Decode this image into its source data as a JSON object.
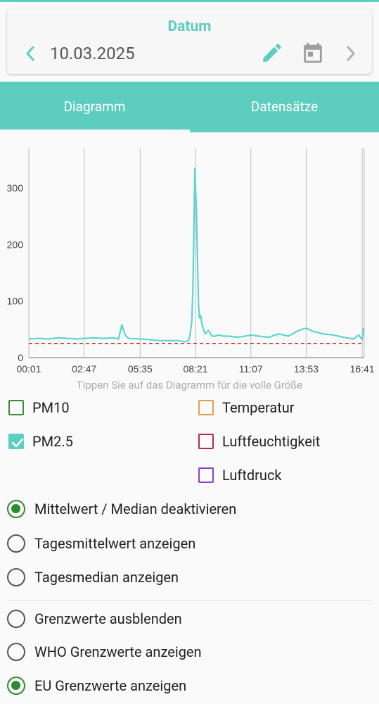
{
  "header": {
    "label": "Datum",
    "date": "10.03.2025",
    "prev_icon": "chevron-left-icon",
    "edit_icon": "pencil-icon",
    "calendar_icon": "calendar-icon",
    "next_icon": "chevron-right-icon"
  },
  "tabs": [
    {
      "label": "Diagramm",
      "active": true
    },
    {
      "label": "Datensätze",
      "active": false
    }
  ],
  "chart_hint": "Tippen Sie auf das Diagramm für die volle Größe",
  "chart_data": {
    "type": "line",
    "title": "",
    "xlabel": "",
    "ylabel": "",
    "x_ticks": [
      "00:01",
      "02:47",
      "05:35",
      "08:21",
      "11:07",
      "13:53",
      "16:41"
    ],
    "y_ticks": [
      0,
      100,
      200,
      300
    ],
    "ylim": [
      0,
      360
    ],
    "grid": "vertical",
    "series": [
      {
        "color": "#5cd6cc",
        "x": [
          "00:01",
          "00:30",
          "01:00",
          "01:30",
          "02:00",
          "02:30",
          "02:47",
          "03:15",
          "03:45",
          "04:15",
          "04:30",
          "04:40",
          "04:50",
          "05:00",
          "05:35",
          "06:00",
          "06:30",
          "07:00",
          "07:30",
          "07:50",
          "08:00",
          "08:05",
          "08:10",
          "08:13",
          "08:16",
          "08:19",
          "08:21",
          "08:24",
          "08:27",
          "08:30",
          "08:33",
          "08:36",
          "08:40",
          "08:45",
          "08:50",
          "09:00",
          "09:10",
          "09:20",
          "09:30",
          "09:45",
          "10:00",
          "10:30",
          "11:07",
          "11:30",
          "12:00",
          "12:30",
          "13:00",
          "13:30",
          "13:53",
          "14:15",
          "14:45",
          "15:15",
          "15:45",
          "16:15",
          "16:30",
          "16:41",
          "16:45"
        ],
        "y": [
          33,
          34,
          33,
          35,
          34,
          33,
          34,
          35,
          34,
          35,
          33,
          58,
          40,
          34,
          33,
          32,
          30,
          30,
          30,
          28,
          30,
          42,
          65,
          120,
          220,
          335,
          300,
          255,
          170,
          95,
          70,
          75,
          60,
          50,
          42,
          48,
          38,
          38,
          40,
          38,
          38,
          36,
          40,
          38,
          36,
          42,
          38,
          48,
          52,
          46,
          42,
          40,
          36,
          33,
          40,
          32,
          52
        ]
      },
      {
        "color": "#b22222",
        "style": "dashed",
        "x": [
          "00:01",
          "16:45"
        ],
        "y": [
          25,
          25
        ]
      }
    ]
  },
  "sensors": [
    {
      "label": "PM10",
      "checked": false,
      "color": "#3c8a3c"
    },
    {
      "label": "PM2.5",
      "checked": true,
      "color": "#5ccdbe"
    },
    {
      "label": "Temperatur",
      "checked": false,
      "color": "#e0a04a"
    },
    {
      "label": "Luftfeuchtigkeit",
      "checked": false,
      "color": "#b03040"
    },
    {
      "label": "Luftdruck",
      "checked": false,
      "color": "#8a3fd0"
    }
  ],
  "average_options": [
    {
      "label": "Mittelwert / Median deaktivieren",
      "selected": true
    },
    {
      "label": "Tagesmittelwert anzeigen",
      "selected": false
    },
    {
      "label": "Tagesmedian anzeigen",
      "selected": false
    }
  ],
  "limit_options": [
    {
      "label": "Grenzwerte ausblenden",
      "selected": false
    },
    {
      "label": "WHO Grenzwerte anzeigen",
      "selected": false
    },
    {
      "label": "EU Grenzwerte anzeigen",
      "selected": true
    }
  ]
}
